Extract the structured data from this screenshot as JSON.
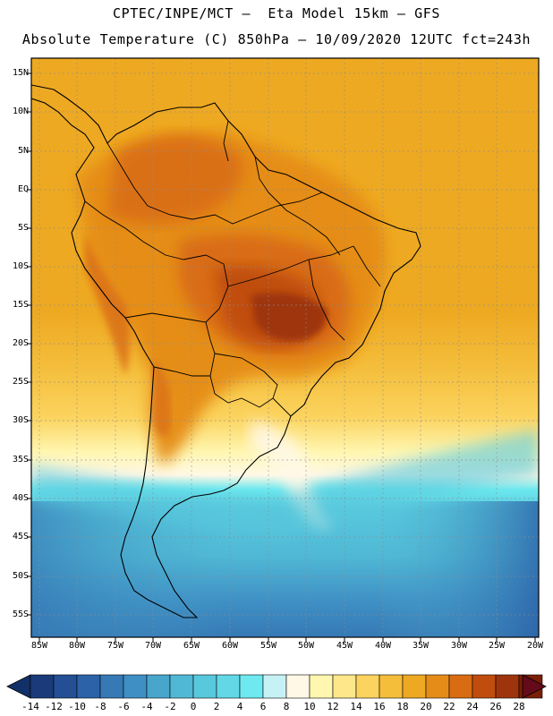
{
  "header": {
    "line1": "CPTEC/INPE/MCT –  Eta Model 15km – GFS",
    "line2": "Absolute Temperature (C) 850hPa – 10/09/2020 12UTC fct=243h"
  },
  "axes": {
    "lat_labels": [
      "15N",
      "10N",
      "5N",
      "EQ",
      "5S",
      "10S",
      "15S",
      "20S",
      "25S",
      "30S",
      "35S",
      "40S",
      "45S",
      "50S",
      "55S"
    ],
    "lon_labels": [
      "85W",
      "80W",
      "75W",
      "70W",
      "65W",
      "60W",
      "55W",
      "50W",
      "45W",
      "40W",
      "35W",
      "30W",
      "25W",
      "20W"
    ]
  },
  "colorbar": {
    "labels": [
      "-14",
      "-12",
      "-10",
      "-8",
      "-6",
      "-4",
      "-2",
      "0",
      "2",
      "4",
      "6",
      "8",
      "10",
      "12",
      "14",
      "16",
      "18",
      "20",
      "22",
      "24",
      "26",
      "28"
    ],
    "colors": [
      "#1a3a7a",
      "#244f94",
      "#2c62a8",
      "#3679b5",
      "#3f8fc4",
      "#48a6cc",
      "#50b8d5",
      "#58c8dd",
      "#62d8e6",
      "#6de9ef",
      "#c6f2f6",
      "#fff8e6",
      "#fff6b0",
      "#fde78a",
      "#fbd35e",
      "#f4bd3a",
      "#eea922",
      "#e58c18",
      "#d96c12",
      "#c04d0e",
      "#9e340b",
      "#7b1e08"
    ],
    "under_color": "#123068",
    "over_color": "#640a1a"
  },
  "map_colors": {
    "ocean_north": "#eea922",
    "ocean_south": "#48a6cc",
    "warm_core": "#c04d0e",
    "hot_core": "#9e340b"
  }
}
